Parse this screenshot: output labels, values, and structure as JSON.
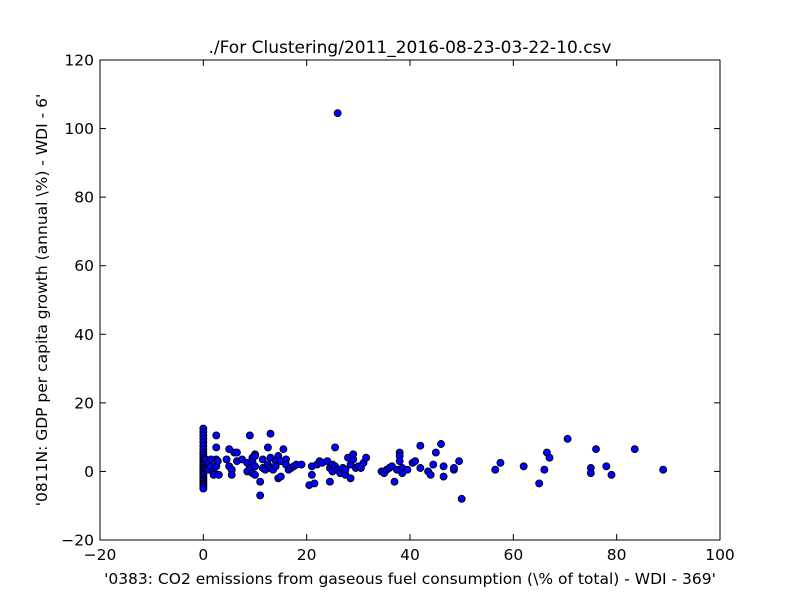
{
  "chart_data": {
    "type": "scatter",
    "title": "./For Clustering/2011_2016-08-23-03-22-10.csv",
    "xlabel": "'0383: CO2 emissions from gaseous fuel consumption  (\\% of total) - WDI - 369'",
    "ylabel": "'0811N: GDP per capita growth  (annual \\%) - WDI - 6'",
    "xlim": [
      -20,
      100
    ],
    "ylim": [
      -20,
      120
    ],
    "xticks": [
      -20,
      0,
      20,
      40,
      60,
      80,
      100
    ],
    "yticks": [
      -20,
      0,
      20,
      40,
      60,
      80,
      100,
      120
    ],
    "xtick_labels": [
      "−20",
      "0",
      "20",
      "40",
      "60",
      "80",
      "100"
    ],
    "ytick_labels": [
      "−20",
      "0",
      "20",
      "40",
      "60",
      "80",
      "100",
      "120"
    ],
    "grid": false,
    "marker_color": "#0000ff",
    "marker_edge_color": "#000000",
    "points": [
      [
        0,
        12.5
      ],
      [
        0,
        11.5
      ],
      [
        0,
        10.5
      ],
      [
        0,
        9.5
      ],
      [
        0,
        8.5
      ],
      [
        0,
        7.5
      ],
      [
        0,
        6.5
      ],
      [
        0,
        5.5
      ],
      [
        0,
        4.8
      ],
      [
        0,
        4.0
      ],
      [
        0,
        3.5
      ],
      [
        0,
        3.0
      ],
      [
        0,
        2.5
      ],
      [
        0,
        2.0
      ],
      [
        0,
        1.5
      ],
      [
        0,
        1.0
      ],
      [
        0,
        0.5
      ],
      [
        0,
        0
      ],
      [
        0,
        -0.5
      ],
      [
        0,
        -1.0
      ],
      [
        0,
        -1.5
      ],
      [
        0,
        -2.0
      ],
      [
        0,
        -2.5
      ],
      [
        0,
        -3.0
      ],
      [
        0,
        -3.5
      ],
      [
        0,
        -4.0
      ],
      [
        0,
        -4.5
      ],
      [
        0,
        -5.0
      ],
      [
        0.5,
        3.5
      ],
      [
        1.0,
        2.5
      ],
      [
        1.0,
        0.5
      ],
      [
        1.5,
        3.5
      ],
      [
        1.5,
        1.5
      ],
      [
        2.0,
        0.0
      ],
      [
        2.0,
        -1.0
      ],
      [
        2.5,
        10.5
      ],
      [
        2.5,
        7.0
      ],
      [
        2.5,
        3.5
      ],
      [
        2.5,
        1.5
      ],
      [
        2.8,
        3.0
      ],
      [
        3.0,
        -1.0
      ],
      [
        4.5,
        3.5
      ],
      [
        5.0,
        6.5
      ],
      [
        5.0,
        1.5
      ],
      [
        5.5,
        0.5
      ],
      [
        5.5,
        -1.0
      ],
      [
        6.0,
        5.5
      ],
      [
        6.5,
        5.5
      ],
      [
        6.5,
        3.0
      ],
      [
        7.5,
        3.5
      ],
      [
        8.5,
        2.5
      ],
      [
        8.5,
        0.0
      ],
      [
        9.0,
        10.5
      ],
      [
        9.0,
        1.0
      ],
      [
        9.5,
        4.0
      ],
      [
        9.5,
        3.0
      ],
      [
        9.5,
        -0.5
      ],
      [
        10.0,
        5.0
      ],
      [
        10.0,
        4.5
      ],
      [
        10.0,
        1.5
      ],
      [
        10.0,
        -1.0
      ],
      [
        11.0,
        -7.0
      ],
      [
        11.0,
        -3.0
      ],
      [
        11.5,
        3.5
      ],
      [
        11.5,
        1.0
      ],
      [
        12.0,
        0.5
      ],
      [
        12.5,
        7.0
      ],
      [
        12.5,
        2.0
      ],
      [
        13.0,
        11.0
      ],
      [
        13.0,
        4.0
      ],
      [
        13.0,
        1.0
      ],
      [
        13.5,
        0.5
      ],
      [
        14.0,
        3.0
      ],
      [
        14.0,
        1.5
      ],
      [
        14.5,
        4.5
      ],
      [
        14.5,
        -2.0
      ],
      [
        15.0,
        3.0
      ],
      [
        15.0,
        -1.5
      ],
      [
        15.5,
        6.5
      ],
      [
        16.0,
        3.5
      ],
      [
        16.0,
        2.0
      ],
      [
        16.5,
        0.5
      ],
      [
        17.0,
        1.0
      ],
      [
        17.5,
        1.5
      ],
      [
        18.0,
        2.0
      ],
      [
        19.0,
        2.0
      ],
      [
        20.5,
        -4.0
      ],
      [
        21.0,
        1.5
      ],
      [
        21.0,
        -1.0
      ],
      [
        21.5,
        -3.5
      ],
      [
        22.0,
        2.0
      ],
      [
        22.5,
        3.0
      ],
      [
        23.0,
        2.5
      ],
      [
        24.0,
        3.0
      ],
      [
        24.5,
        1.0
      ],
      [
        24.5,
        -3.0
      ],
      [
        25.0,
        2.0
      ],
      [
        25.0,
        0.0
      ],
      [
        25.5,
        7.0
      ],
      [
        25.5,
        1.5
      ],
      [
        26.0,
        0.5
      ],
      [
        26.0,
        104.5
      ],
      [
        26.5,
        -0.5
      ],
      [
        27.0,
        1.0
      ],
      [
        27.5,
        -1.0
      ],
      [
        27.5,
        0.5
      ],
      [
        28.0,
        4.0
      ],
      [
        28.5,
        2.0
      ],
      [
        28.5,
        -2.0
      ],
      [
        29.0,
        5.0
      ],
      [
        29.0,
        3.5
      ],
      [
        29.5,
        1.0
      ],
      [
        30.0,
        1.5
      ],
      [
        30.5,
        1.0
      ],
      [
        31.0,
        2.5
      ],
      [
        31.5,
        4.0
      ],
      [
        34.5,
        0.0
      ],
      [
        35.0,
        -0.5
      ],
      [
        35.5,
        0.5
      ],
      [
        36.0,
        1.0
      ],
      [
        36.5,
        1.5
      ],
      [
        37.0,
        -3.0
      ],
      [
        37.5,
        0.5
      ],
      [
        38.0,
        5.5
      ],
      [
        38.0,
        4.5
      ],
      [
        38.0,
        3.0
      ],
      [
        38.5,
        1.0
      ],
      [
        38.5,
        -0.5
      ],
      [
        39.5,
        0.5
      ],
      [
        40.5,
        2.5
      ],
      [
        41.0,
        3.0
      ],
      [
        42.0,
        7.5
      ],
      [
        42.0,
        1.0
      ],
      [
        43.5,
        0.0
      ],
      [
        44.0,
        -1.0
      ],
      [
        44.5,
        2.0
      ],
      [
        45.0,
        5.5
      ],
      [
        46.0,
        8.0
      ],
      [
        46.5,
        1.5
      ],
      [
        46.5,
        -1.5
      ],
      [
        48.5,
        0.5
      ],
      [
        48.5,
        1.0
      ],
      [
        49.5,
        3.0
      ],
      [
        50.0,
        -8.0
      ],
      [
        56.5,
        0.5
      ],
      [
        57.5,
        2.5
      ],
      [
        62.0,
        1.5
      ],
      [
        65.0,
        -3.5
      ],
      [
        66.0,
        0.5
      ],
      [
        66.5,
        5.5
      ],
      [
        67.0,
        4.0
      ],
      [
        70.5,
        9.5
      ],
      [
        75.0,
        1.0
      ],
      [
        75.0,
        -0.5
      ],
      [
        76.0,
        6.5
      ],
      [
        78.0,
        1.5
      ],
      [
        79.0,
        -1.0
      ],
      [
        83.5,
        6.5
      ],
      [
        89.0,
        0.5
      ]
    ]
  }
}
